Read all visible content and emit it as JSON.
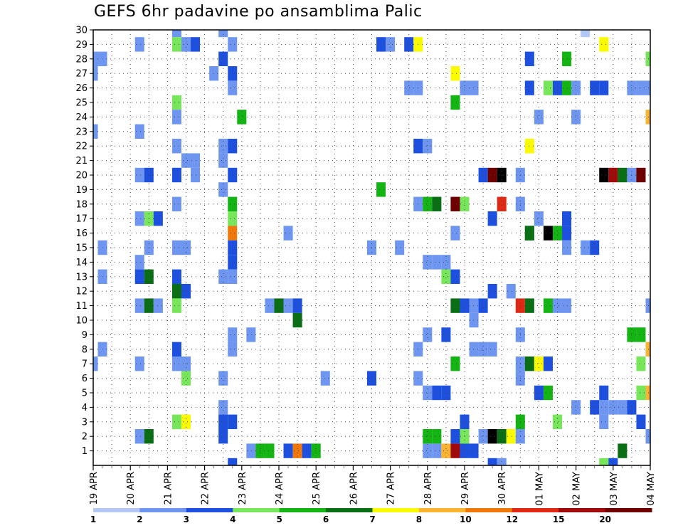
{
  "chart_data": {
    "type": "heatmap",
    "title": "GEFS 6hr padavine po ansamblima Palic",
    "xlabel": "",
    "ylabel": "",
    "x_ticks": [
      "19 APR",
      "20 APR",
      "21 APR",
      "22 APR",
      "23 APR",
      "24 APR",
      "25 APR",
      "26 APR",
      "27 APR",
      "28 APR",
      "29 APR",
      "30 APR",
      "01 MAY",
      "02 MAY",
      "03 MAY",
      "04 MAY"
    ],
    "y_ticks": [
      "1",
      "2",
      "3",
      "4",
      "5",
      "6",
      "7",
      "8",
      "9",
      "10",
      "11",
      "12",
      "13",
      "14",
      "15",
      "16",
      "17",
      "18",
      "19",
      "20",
      "21",
      "22",
      "23",
      "24",
      "25",
      "26",
      "27",
      "28",
      "29",
      "30"
    ],
    "x_range": [
      0,
      60
    ],
    "y_range": [
      0,
      30
    ],
    "grid": true,
    "legend": {
      "placement": "bottom",
      "labels": [
        "1",
        "2",
        "3",
        "4",
        "5",
        "6",
        "7",
        "8",
        "10",
        "12",
        "15",
        "20"
      ],
      "colors": [
        "#b4c8f5",
        "#6e96f0",
        "#1e50e0",
        "#78e65a",
        "#14b414",
        "#0a6e14",
        "#fafa00",
        "#fab432",
        "#f0780a",
        "#e12814",
        "#a00a0a",
        "#6e0000"
      ]
    },
    "cells": [
      [
        0,
        28,
        1
      ],
      [
        1,
        28,
        1
      ],
      [
        0,
        27,
        1
      ],
      [
        0,
        23,
        1
      ],
      [
        0,
        7,
        1
      ],
      [
        1,
        15,
        1
      ],
      [
        1,
        13,
        1
      ],
      [
        1,
        8,
        1
      ],
      [
        5,
        29,
        1
      ],
      [
        5,
        23,
        1
      ],
      [
        5,
        20,
        1
      ],
      [
        5,
        17,
        1
      ],
      [
        5,
        14,
        1
      ],
      [
        5,
        13,
        2
      ],
      [
        5,
        11,
        1
      ],
      [
        5,
        7,
        1
      ],
      [
        5,
        2,
        1
      ],
      [
        6,
        20,
        2
      ],
      [
        6,
        17,
        3
      ],
      [
        6,
        15,
        1
      ],
      [
        6,
        13,
        5
      ],
      [
        6,
        11,
        5
      ],
      [
        6,
        2,
        5
      ],
      [
        7,
        17,
        2
      ],
      [
        7,
        11,
        1
      ],
      [
        9,
        30,
        1
      ],
      [
        9,
        29,
        3
      ],
      [
        9,
        25,
        3
      ],
      [
        9,
        24,
        1
      ],
      [
        9,
        22,
        1
      ],
      [
        9,
        20,
        2
      ],
      [
        9,
        18,
        1
      ],
      [
        9,
        15,
        1
      ],
      [
        9,
        13,
        2
      ],
      [
        9,
        12,
        5
      ],
      [
        9,
        11,
        3
      ],
      [
        9,
        8,
        2
      ],
      [
        9,
        7,
        1
      ],
      [
        9,
        3,
        3
      ],
      [
        10,
        29,
        1
      ],
      [
        10,
        21,
        1
      ],
      [
        10,
        15,
        1
      ],
      [
        10,
        12,
        2
      ],
      [
        10,
        7,
        1
      ],
      [
        10,
        6,
        3
      ],
      [
        10,
        3,
        6
      ],
      [
        11,
        29,
        2
      ],
      [
        11,
        21,
        1
      ],
      [
        11,
        20,
        1
      ],
      [
        13,
        27,
        1
      ],
      [
        14,
        30,
        1
      ],
      [
        14,
        28,
        2
      ],
      [
        14,
        22,
        1
      ],
      [
        14,
        19,
        1
      ],
      [
        14,
        13,
        1
      ],
      [
        14,
        6,
        1
      ],
      [
        14,
        4,
        1
      ],
      [
        14,
        3,
        2
      ],
      [
        14,
        2,
        2
      ],
      [
        14,
        21,
        1
      ],
      [
        15,
        29,
        1
      ],
      [
        15,
        27,
        2
      ],
      [
        15,
        26,
        1
      ],
      [
        15,
        22,
        2
      ],
      [
        15,
        20,
        2
      ],
      [
        15,
        18,
        4
      ],
      [
        15,
        17,
        3
      ],
      [
        15,
        16,
        8
      ],
      [
        15,
        15,
        2
      ],
      [
        15,
        14,
        2
      ],
      [
        15,
        13,
        1
      ],
      [
        15,
        9,
        1
      ],
      [
        15,
        8,
        1
      ],
      [
        15,
        3,
        2
      ],
      [
        15,
        0,
        2
      ],
      [
        16,
        24,
        4
      ],
      [
        17,
        9,
        1
      ],
      [
        17,
        1,
        1
      ],
      [
        18,
        1,
        4
      ],
      [
        19,
        11,
        1
      ],
      [
        19,
        1,
        4
      ],
      [
        20,
        11,
        5
      ],
      [
        21,
        16,
        1
      ],
      [
        21,
        11,
        1
      ],
      [
        21,
        1,
        2
      ],
      [
        22,
        11,
        2
      ],
      [
        22,
        10,
        5
      ],
      [
        22,
        1,
        8
      ],
      [
        23,
        1,
        2
      ],
      [
        24,
        1,
        4
      ],
      [
        25,
        6,
        1
      ],
      [
        30,
        6,
        2
      ],
      [
        30,
        15,
        1
      ],
      [
        31,
        29,
        2
      ],
      [
        31,
        19,
        4
      ],
      [
        32,
        29,
        1
      ],
      [
        33,
        15,
        1
      ],
      [
        34,
        29,
        2
      ],
      [
        34,
        26,
        1
      ],
      [
        35,
        29,
        6
      ],
      [
        35,
        26,
        1
      ],
      [
        35,
        22,
        2
      ],
      [
        35,
        18,
        1
      ],
      [
        35,
        6,
        1
      ],
      [
        35,
        8,
        1
      ],
      [
        36,
        22,
        1
      ],
      [
        36,
        18,
        4
      ],
      [
        36,
        14,
        1
      ],
      [
        36,
        9,
        1
      ],
      [
        36,
        5,
        1
      ],
      [
        36,
        2,
        4
      ],
      [
        36,
        1,
        1
      ],
      [
        37,
        14,
        1
      ],
      [
        37,
        18,
        5
      ],
      [
        37,
        5,
        2
      ],
      [
        37,
        2,
        4
      ],
      [
        37,
        1,
        1
      ],
      [
        38,
        13,
        3
      ],
      [
        38,
        9,
        2
      ],
      [
        38,
        5,
        2
      ],
      [
        38,
        1,
        7
      ],
      [
        38,
        14,
        1
      ],
      [
        39,
        27,
        6
      ],
      [
        39,
        25,
        4
      ],
      [
        39,
        18,
        11
      ],
      [
        39,
        16,
        1
      ],
      [
        39,
        13,
        2
      ],
      [
        39,
        11,
        5
      ],
      [
        39,
        7,
        4
      ],
      [
        39,
        2,
        2
      ],
      [
        39,
        1,
        10
      ],
      [
        40,
        26,
        1
      ],
      [
        40,
        18,
        3
      ],
      [
        40,
        11,
        2
      ],
      [
        40,
        3,
        2
      ],
      [
        40,
        2,
        3
      ],
      [
        40,
        1,
        2
      ],
      [
        41,
        26,
        1
      ],
      [
        41,
        11,
        1
      ],
      [
        41,
        10,
        1
      ],
      [
        41,
        8,
        1
      ],
      [
        41,
        1,
        2
      ],
      [
        42,
        20,
        2
      ],
      [
        42,
        11,
        2
      ],
      [
        42,
        8,
        1
      ],
      [
        42,
        2,
        1
      ],
      [
        43,
        20,
        11
      ],
      [
        43,
        17,
        2
      ],
      [
        43,
        12,
        2
      ],
      [
        43,
        8,
        1
      ],
      [
        43,
        2,
        12
      ],
      [
        43,
        0,
        2
      ],
      [
        44,
        20,
        12
      ],
      [
        44,
        18,
        9
      ],
      [
        44,
        2,
        5
      ],
      [
        44,
        0,
        1
      ],
      [
        45,
        12,
        1
      ],
      [
        45,
        2,
        6
      ],
      [
        46,
        11,
        9
      ],
      [
        46,
        9,
        1
      ],
      [
        46,
        7,
        1
      ],
      [
        46,
        6,
        1
      ],
      [
        46,
        3,
        4
      ],
      [
        46,
        2,
        1
      ],
      [
        46,
        20,
        1
      ],
      [
        46,
        18,
        1
      ],
      [
        47,
        28,
        2
      ],
      [
        47,
        26,
        2
      ],
      [
        47,
        22,
        6
      ],
      [
        47,
        16,
        5
      ],
      [
        47,
        11,
        5
      ],
      [
        47,
        7,
        5
      ],
      [
        47,
        16,
        5
      ],
      [
        48,
        24,
        1
      ],
      [
        48,
        17,
        1
      ],
      [
        48,
        7,
        6
      ],
      [
        48,
        5,
        2
      ],
      [
        49,
        16,
        12
      ],
      [
        49,
        26,
        3
      ],
      [
        49,
        7,
        2
      ],
      [
        49,
        5,
        4
      ],
      [
        49,
        11,
        4
      ],
      [
        50,
        16,
        4
      ],
      [
        50,
        26,
        2
      ],
      [
        50,
        3,
        3
      ],
      [
        50,
        11,
        1
      ],
      [
        51,
        28,
        4
      ],
      [
        51,
        26,
        4
      ],
      [
        51,
        17,
        2
      ],
      [
        51,
        16,
        2
      ],
      [
        51,
        15,
        1
      ],
      [
        51,
        11,
        1
      ],
      [
        52,
        26,
        1
      ],
      [
        52,
        24,
        1
      ],
      [
        52,
        4,
        1
      ],
      [
        53,
        30,
        0
      ],
      [
        53,
        15,
        1
      ],
      [
        54,
        15,
        2
      ],
      [
        54,
        26,
        2
      ],
      [
        54,
        4,
        2
      ],
      [
        55,
        26,
        2
      ],
      [
        55,
        4,
        1
      ],
      [
        55,
        3,
        1
      ],
      [
        55,
        29,
        6
      ],
      [
        55,
        20,
        15
      ],
      [
        55,
        5,
        2
      ],
      [
        55,
        0,
        3
      ],
      [
        56,
        20,
        10
      ],
      [
        56,
        4,
        1
      ],
      [
        56,
        0,
        2
      ],
      [
        57,
        20,
        5
      ],
      [
        57,
        4,
        1
      ],
      [
        57,
        1,
        5
      ],
      [
        58,
        20,
        1
      ],
      [
        58,
        26,
        1
      ],
      [
        58,
        4,
        2
      ],
      [
        58,
        9,
        4
      ],
      [
        59,
        26,
        1
      ],
      [
        59,
        9,
        4
      ],
      [
        59,
        20,
        11
      ],
      [
        59,
        5,
        3
      ],
      [
        59,
        7,
        3
      ],
      [
        59,
        3,
        2
      ],
      [
        60,
        28,
        3
      ],
      [
        60,
        26,
        1
      ],
      [
        60,
        24,
        7
      ],
      [
        60,
        11,
        1
      ],
      [
        60,
        8,
        7
      ],
      [
        60,
        5,
        7
      ],
      [
        60,
        2,
        1
      ]
    ]
  }
}
